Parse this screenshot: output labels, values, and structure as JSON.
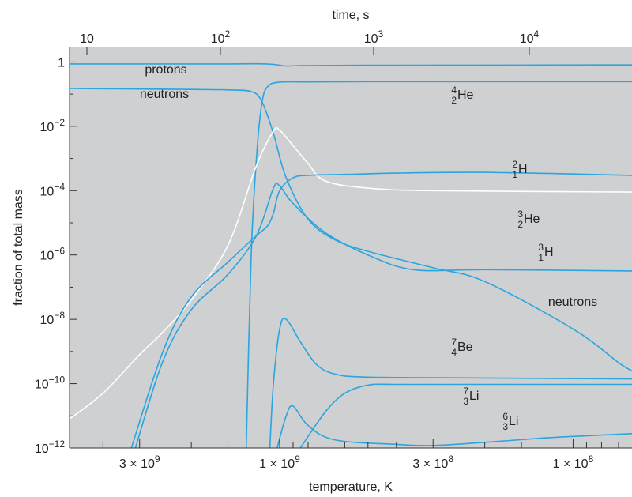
{
  "chart_data": {
    "type": "line",
    "title": "",
    "top_axis": {
      "label": "time, s",
      "scale": "log",
      "ticks": [
        {
          "value": 10,
          "mantissa": "10",
          "exp": ""
        },
        {
          "value": 100,
          "mantissa": "10",
          "exp": "2"
        },
        {
          "value": 1000,
          "mantissa": "10",
          "exp": "3"
        },
        {
          "value": 10000,
          "mantissa": "10",
          "exp": "4"
        }
      ]
    },
    "x_axis": {
      "label": "temperature, K",
      "scale": "log",
      "reversed": true,
      "range": [
        5200000000.0,
        63000000.0
      ],
      "ticks": [
        {
          "value": 3000000000.0,
          "mantissa": "3 × 10",
          "exp": "9"
        },
        {
          "value": 1000000000.0,
          "mantissa": "1 × 10",
          "exp": "9"
        },
        {
          "value": 300000000.0,
          "mantissa": "3 × 10",
          "exp": "8"
        },
        {
          "value": 100000000.0,
          "mantissa": "1 × 10",
          "exp": "8"
        }
      ]
    },
    "y_axis": {
      "label": "fraction of total mass",
      "scale": "log",
      "range": [
        1e-12,
        3
      ],
      "ticks": [
        {
          "value": 1,
          "mantissa": "1",
          "exp": ""
        },
        {
          "value": 0.01,
          "mantissa": "10",
          "exp": "−2"
        },
        {
          "value": 0.0001,
          "mantissa": "10",
          "exp": "−4"
        },
        {
          "value": 1e-06,
          "mantissa": "10",
          "exp": "−6"
        },
        {
          "value": 1e-08,
          "mantissa": "10",
          "exp": "−8"
        },
        {
          "value": 1e-10,
          "mantissa": "10",
          "exp": "−10"
        },
        {
          "value": 1e-12,
          "mantissa": "10",
          "exp": "−12"
        }
      ]
    },
    "grid": false,
    "colors": {
      "plot_background": "#cfd0d2",
      "curve": "#2aa5de",
      "deuterium_curve": "#ffffff"
    },
    "series": [
      {
        "name": "protons",
        "color": "#2aa5de",
        "points": [
          [
            5200000000.0,
            0.87
          ],
          [
            2000000000.0,
            0.87
          ],
          [
            1500000000.0,
            0.87
          ],
          [
            1200000000.0,
            0.88
          ],
          [
            1050000000.0,
            0.84
          ],
          [
            950000000.0,
            0.75
          ],
          [
            850000000.0,
            0.77
          ],
          [
            500000000.0,
            0.79
          ],
          [
            200000000.0,
            0.8
          ],
          [
            63000000.0,
            0.81
          ]
        ]
      },
      {
        "name": "neutrons",
        "color": "#2aa5de",
        "points": [
          [
            5200000000.0,
            0.15
          ],
          [
            2000000000.0,
            0.14
          ],
          [
            1500000000.0,
            0.135
          ],
          [
            1250000000.0,
            0.12
          ],
          [
            1150000000.0,
            0.06
          ],
          [
            1050000000.0,
            0.006
          ],
          [
            950000000.0,
            0.00025
          ],
          [
            800000000.0,
            1.3e-05
          ],
          [
            650000000.0,
            3e-06
          ],
          [
            500000000.0,
            1.3e-06
          ],
          [
            300000000.0,
            4e-07
          ],
          [
            200000000.0,
            1.5e-07
          ],
          [
            100000000.0,
            5e-09
          ],
          [
            70000000.0,
            4.5e-10
          ],
          [
            63000000.0,
            2.5e-10
          ]
        ]
      },
      {
        "name": "4 2 He",
        "color": "#2aa5de",
        "points": [
          [
            1300000000.0,
            1e-12
          ],
          [
            1250000000.0,
            1e-06
          ],
          [
            1200000000.0,
            0.001
          ],
          [
            1150000000.0,
            0.05
          ],
          [
            1100000000.0,
            0.17
          ],
          [
            1000000000.0,
            0.235
          ],
          [
            800000000.0,
            0.24
          ],
          [
            500000000.0,
            0.245
          ],
          [
            200000000.0,
            0.245
          ],
          [
            63000000.0,
            0.245
          ]
        ]
      },
      {
        "name": "2 1 H",
        "color": "#ffffff",
        "points": [
          [
            5200000000.0,
            8e-12
          ],
          [
            4000000000.0,
            5e-11
          ],
          [
            3000000000.0,
            8e-10
          ],
          [
            2500000000.0,
            4e-09
          ],
          [
            2000000000.0,
            4e-08
          ],
          [
            1500000000.0,
            2e-06
          ],
          [
            1200000000.0,
            0.0006
          ],
          [
            1050000000.0,
            0.007
          ],
          [
            1000000000.0,
            0.0075
          ],
          [
            900000000.0,
            0.0025
          ],
          [
            800000000.0,
            0.0007
          ],
          [
            700000000.0,
            0.0002
          ],
          [
            500000000.0,
            0.00012
          ],
          [
            300000000.0,
            0.0001
          ],
          [
            63000000.0,
            9e-05
          ]
        ]
      },
      {
        "name": "3 2 He",
        "color": "#2aa5de",
        "points": [
          [
            3200000000.0,
            1e-12
          ],
          [
            2500000000.0,
            1e-09
          ],
          [
            2000000000.0,
            5e-08
          ],
          [
            1500000000.0,
            6e-07
          ],
          [
            1200000000.0,
            4e-06
          ],
          [
            1100000000.0,
            8e-06
          ],
          [
            1050000000.0,
            2e-05
          ],
          [
            1000000000.0,
            0.0001
          ],
          [
            900000000.0,
            0.00025
          ],
          [
            800000000.0,
            0.0003
          ],
          [
            600000000.0,
            0.00032
          ],
          [
            400000000.0,
            0.00035
          ],
          [
            200000000.0,
            0.00037
          ],
          [
            63000000.0,
            0.0003
          ]
        ]
      },
      {
        "name": "3 1 H",
        "color": "#2aa5de",
        "points": [
          [
            3100000000.0,
            1e-12
          ],
          [
            2500000000.0,
            5e-10
          ],
          [
            2000000000.0,
            2e-08
          ],
          [
            1500000000.0,
            2.5e-07
          ],
          [
            1200000000.0,
            4e-06
          ],
          [
            1050000000.0,
            0.00012
          ],
          [
            1000000000.0,
            0.00014
          ],
          [
            900000000.0,
            4e-05
          ],
          [
            700000000.0,
            5e-06
          ],
          [
            500000000.0,
            1e-06
          ],
          [
            350000000.0,
            3.5e-07
          ],
          [
            200000000.0,
            3.5e-07
          ],
          [
            63000000.0,
            3.2e-07
          ]
        ]
      },
      {
        "name": "7 4 Be",
        "color": "#2aa5de",
        "points": [
          [
            1080000000.0,
            1e-12
          ],
          [
            1050000000.0,
            1e-10
          ],
          [
            1000000000.0,
            5e-09
          ],
          [
            950000000.0,
            1e-08
          ],
          [
            850000000.0,
            2e-09
          ],
          [
            750000000.0,
            4e-10
          ],
          [
            650000000.0,
            2e-10
          ],
          [
            500000000.0,
            1.6e-10
          ],
          [
            200000000.0,
            1.5e-10
          ],
          [
            63000000.0,
            1.4e-10
          ]
        ]
      },
      {
        "name": "7 3 Li",
        "color": "#2aa5de",
        "points": [
          [
            850000000.0,
            1e-12
          ],
          [
            700000000.0,
            1.3e-11
          ],
          [
            600000000.0,
            5e-11
          ],
          [
            500000000.0,
            9e-11
          ],
          [
            400000000.0,
            9.5e-11
          ],
          [
            200000000.0,
            9.5e-11
          ],
          [
            63000000.0,
            9.5e-11
          ]
        ]
      },
      {
        "name": "6 3 Li",
        "color": "#2aa5de",
        "points": [
          [
            1020000000.0,
            1e-12
          ],
          [
            950000000.0,
            1e-11
          ],
          [
            900000000.0,
            2e-11
          ],
          [
            800000000.0,
            5e-12
          ],
          [
            650000000.0,
            1.8e-12
          ],
          [
            400000000.0,
            1.3e-12
          ],
          [
            300000000.0,
            1.2e-12
          ],
          [
            200000000.0,
            1.5e-12
          ],
          [
            130000000.0,
            2e-12
          ],
          [
            100000000.0,
            2.3e-12
          ],
          [
            63000000.0,
            2.8e-12
          ]
        ]
      }
    ],
    "annotations": [
      {
        "text": "protons",
        "series": "protons"
      },
      {
        "text": "neutrons",
        "series": "neutrons (initial)"
      },
      {
        "mass": "4",
        "charge": "2",
        "symbol": "He",
        "series": "4 2 He"
      },
      {
        "mass": "2",
        "charge": "1",
        "symbol": "H",
        "series": "2 1 H"
      },
      {
        "mass": "3",
        "charge": "2",
        "symbol": "He",
        "series": "3 2 He"
      },
      {
        "mass": "3",
        "charge": "1",
        "symbol": "H",
        "series": "3 1 H"
      },
      {
        "text": "neutrons",
        "series": "neutrons"
      },
      {
        "mass": "7",
        "charge": "4",
        "symbol": "Be",
        "series": "7 4 Be"
      },
      {
        "mass": "7",
        "charge": "3",
        "symbol": "Li",
        "series": "7 3 Li"
      },
      {
        "mass": "6",
        "charge": "3",
        "symbol": "Li",
        "series": "6 3 Li"
      }
    ]
  }
}
